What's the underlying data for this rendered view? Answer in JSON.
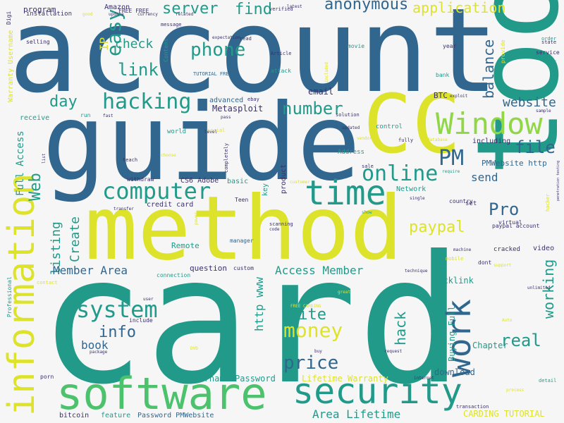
{
  "palette": {
    "navy": "#3b2f6e",
    "blue": "#31668e",
    "teal": "#229a8a",
    "green": "#4cc26c",
    "lime": "#8fd744",
    "yellow": "#dde32b",
    "background": "#f6f6f6"
  },
  "words": [
    {
      "text": "account"
    },
    {
      "text": "guide"
    },
    {
      "text": "card"
    },
    {
      "text": "method"
    },
    {
      "text": "tool"
    },
    {
      "text": "CC"
    },
    {
      "text": "software"
    },
    {
      "text": "security"
    },
    {
      "text": "information"
    },
    {
      "text": "time"
    },
    {
      "text": "Window"
    },
    {
      "text": "computer"
    },
    {
      "text": "online"
    },
    {
      "text": "work"
    },
    {
      "text": "hacking"
    },
    {
      "text": "easy"
    },
    {
      "text": "phone"
    },
    {
      "text": "price"
    },
    {
      "text": "money"
    },
    {
      "text": "system"
    },
    {
      "text": "server"
    },
    {
      "text": "find"
    },
    {
      "text": "anonymous"
    },
    {
      "text": "application"
    },
    {
      "text": "link"
    },
    {
      "text": "number"
    },
    {
      "text": "Pro"
    },
    {
      "text": "PM"
    },
    {
      "text": "real"
    },
    {
      "text": "file"
    },
    {
      "text": "paypal"
    },
    {
      "text": "website"
    },
    {
      "text": "balance"
    },
    {
      "text": "day"
    },
    {
      "text": "info"
    },
    {
      "text": "check"
    },
    {
      "text": "working"
    },
    {
      "text": "site"
    },
    {
      "text": "hack"
    },
    {
      "text": "Web"
    },
    {
      "text": "listing"
    },
    {
      "text": "Create"
    },
    {
      "text": "Member Area"
    },
    {
      "text": "Access Member"
    },
    {
      "text": "http www"
    },
    {
      "text": "Full Access"
    },
    {
      "text": "Area Lifetime"
    },
    {
      "text": "send"
    },
    {
      "text": "book"
    },
    {
      "text": "IP"
    },
    {
      "text": "Lifetime Warranty"
    },
    {
      "text": "Username Password"
    },
    {
      "text": "PMWebsite http"
    },
    {
      "text": "CARDING TUTORIAL"
    },
    {
      "text": "Buying Full"
    },
    {
      "text": "Chapter"
    },
    {
      "text": "Metasploit"
    },
    {
      "text": "Backlink"
    },
    {
      "text": "download"
    },
    {
      "text": "credit card"
    },
    {
      "text": "Warranty Username"
    },
    {
      "text": "Amazon"
    },
    {
      "text": "program"
    },
    {
      "text": "installation"
    },
    {
      "text": "CS6 Adobe"
    },
    {
      "text": "email"
    },
    {
      "text": "BTC"
    },
    {
      "text": "including"
    },
    {
      "text": "question"
    },
    {
      "text": "Remote"
    },
    {
      "text": "bitcoin"
    },
    {
      "text": "feature"
    },
    {
      "text": "Password PMWebsite"
    },
    {
      "text": "advanced"
    },
    {
      "text": "receive"
    },
    {
      "text": "video"
    },
    {
      "text": "product"
    },
    {
      "text": "key"
    },
    {
      "text": "basic"
    },
    {
      "text": "Network"
    },
    {
      "text": "set"
    },
    {
      "text": "Address"
    },
    {
      "text": "control"
    },
    {
      "text": "attack"
    },
    {
      "text": "bank"
    },
    {
      "text": "service"
    },
    {
      "text": "year"
    },
    {
      "text": "state"
    },
    {
      "text": "movie"
    },
    {
      "text": "Content"
    },
    {
      "text": "selling"
    },
    {
      "text": "Digi"
    },
    {
      "text": "FREE FREE"
    },
    {
      "text": "TUTORIAL FREE"
    },
    {
      "text": "withdraw"
    },
    {
      "text": "world"
    },
    {
      "text": "cracked"
    },
    {
      "text": "dont"
    },
    {
      "text": "machine"
    },
    {
      "text": "virtual"
    },
    {
      "text": "paypal account"
    },
    {
      "text": "country"
    },
    {
      "text": "scanning"
    },
    {
      "text": "manager"
    },
    {
      "text": "custom"
    },
    {
      "text": "code"
    },
    {
      "text": "connection"
    },
    {
      "text": "include"
    },
    {
      "text": "Professional"
    },
    {
      "text": "contact"
    },
    {
      "text": "porn"
    },
    {
      "text": "internet"
    },
    {
      "text": "transaction"
    },
    {
      "text": "package"
    },
    {
      "text": "buy"
    },
    {
      "text": "run"
    },
    {
      "text": "fast"
    },
    {
      "text": "message"
    },
    {
      "text": "verified"
    },
    {
      "text": "order"
    },
    {
      "text": "provide"
    },
    {
      "text": "pay"
    },
    {
      "text": "hacker"
    },
    {
      "text": "penetration testing"
    },
    {
      "text": "unlimited"
    },
    {
      "text": "Auto"
    },
    {
      "text": "support"
    },
    {
      "text": "process"
    },
    {
      "text": "detail"
    },
    {
      "text": "sample"
    },
    {
      "text": "exploit"
    },
    {
      "text": "solution"
    },
    {
      "text": "sale"
    },
    {
      "text": "fully"
    },
    {
      "text": "database"
    },
    {
      "text": "require"
    },
    {
      "text": "show"
    },
    {
      "text": "customer"
    },
    {
      "text": "single"
    },
    {
      "text": "Teen"
    },
    {
      "text": "completely"
    },
    {
      "text": "social"
    },
    {
      "text": "teach"
    },
    {
      "text": "choose"
    },
    {
      "text": "transfer"
    },
    {
      "text": "power"
    },
    {
      "text": "great"
    },
    {
      "text": "technique"
    },
    {
      "text": "FREE CARDING"
    },
    {
      "text": "request"
    },
    {
      "text": "latest"
    },
    {
      "text": "good"
    },
    {
      "text": "update"
    },
    {
      "text": "currency"
    },
    {
      "text": "related"
    },
    {
      "text": "read"
    },
    {
      "text": "expectation"
    },
    {
      "text": "Article"
    },
    {
      "text": "included"
    },
    {
      "text": "ebay"
    },
    {
      "text": "pass"
    },
    {
      "text": "updated"
    },
    {
      "text": "vendor"
    },
    {
      "text": "mobile"
    },
    {
      "text": "list"
    },
    {
      "text": "DVD"
    },
    {
      "text": "level"
    },
    {
      "text": "user"
    }
  ]
}
